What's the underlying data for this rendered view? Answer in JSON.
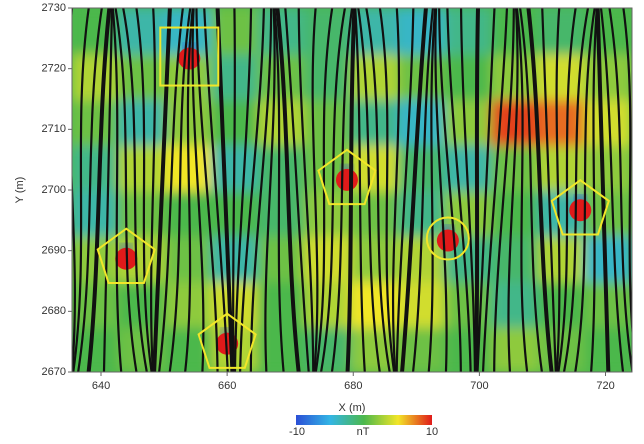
{
  "chart_data": {
    "type": "heatmap",
    "xlabel": "X (m)",
    "ylabel": "Y (m)",
    "xlim": [
      635.4,
      724.2
    ],
    "xticks": [
      640,
      660,
      680,
      700,
      720
    ],
    "ylim": [
      2670,
      2730
    ],
    "yticks": [
      2670,
      2680,
      2690,
      2700,
      2710,
      2720,
      2730
    ],
    "xbins": [
      635.4,
      642.8,
      650.2,
      657.6,
      665,
      672.4,
      679.8,
      687.2,
      694.6,
      702,
      709.4,
      716.8,
      724.2
    ],
    "ybins": [
      2670,
      2677.5,
      2685,
      2692.5,
      2700,
      2707.5,
      2715,
      2722.5,
      2730
    ],
    "z": [
      [
        0,
        1,
        0,
        3,
        0,
        -1,
        2,
        1,
        0,
        2,
        1,
        0
      ],
      [
        1,
        0,
        2,
        4,
        0,
        3,
        5,
        4,
        1,
        -2,
        0,
        1
      ],
      [
        2,
        3,
        1,
        -3,
        1,
        4,
        2,
        3,
        -2,
        -1,
        3,
        -4
      ],
      [
        -3,
        1,
        0,
        0,
        -1,
        2,
        1,
        -2,
        2,
        0,
        -3,
        1
      ],
      [
        -2,
        3,
        5,
        -3,
        -1,
        1,
        4,
        -1,
        -3,
        1,
        3,
        2
      ],
      [
        1,
        -3,
        2,
        0,
        3,
        1,
        -2,
        -4,
        2,
        9,
        8,
        4
      ],
      [
        3,
        1,
        2,
        -2,
        1,
        -1,
        3,
        1,
        0,
        2,
        4,
        2
      ],
      [
        0,
        -3,
        -4,
        1,
        -2,
        -1,
        -3,
        -4,
        -2,
        0,
        -1,
        0
      ]
    ],
    "targets": [
      {
        "shape": "square",
        "x": 654,
        "y": 2722
      },
      {
        "shape": "pentagon",
        "x": 679,
        "y": 2702
      },
      {
        "shape": "circle",
        "x": 695,
        "y": 2692
      },
      {
        "shape": "pentagon",
        "x": 716,
        "y": 2697
      },
      {
        "shape": "pentagon",
        "x": 644,
        "y": 2689
      },
      {
        "shape": "pentagon",
        "x": 660,
        "y": 2675
      }
    ],
    "colorbar": {
      "label": "nT",
      "vmin": -10,
      "vmax": 10
    }
  }
}
